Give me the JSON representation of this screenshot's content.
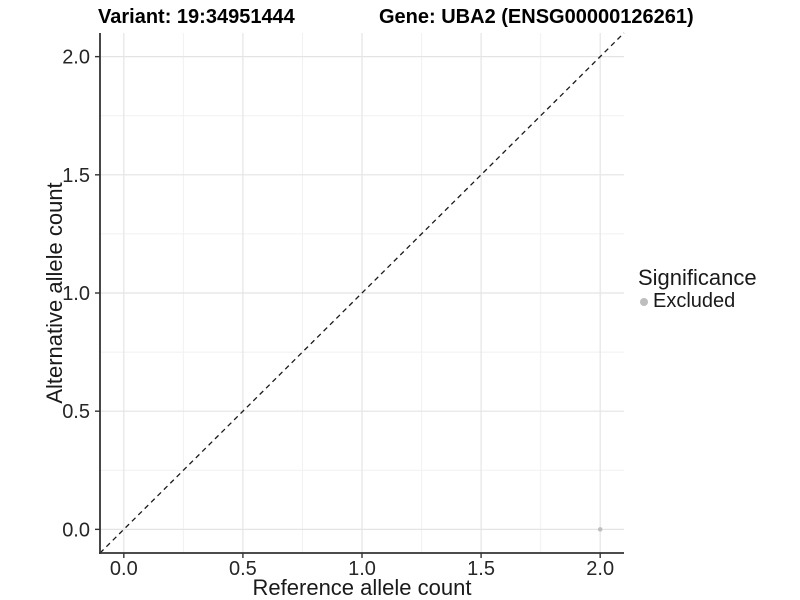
{
  "chart_data": {
    "type": "scatter",
    "title_left": "Variant: 19:34951444",
    "title_right": "Gene: UBA2 (ENSG00000126261)",
    "xlabel": "Reference allele count",
    "ylabel": "Alternative allele count",
    "xlim": [
      -0.1,
      2.1
    ],
    "ylim": [
      -0.1,
      2.1
    ],
    "x_ticks": [
      0,
      0.5,
      1,
      1.5,
      2
    ],
    "x_tick_labels": [
      "0.0",
      "0.5",
      "1.0",
      "1.5",
      "2.0"
    ],
    "y_ticks": [
      0,
      0.5,
      1,
      1.5,
      2
    ],
    "y_tick_labels": [
      "0.0",
      "0.5",
      "1.0",
      "1.5",
      "2.0"
    ],
    "minor_ticks": [
      0.25,
      0.75,
      1.25,
      1.75
    ],
    "grid": "major+minor",
    "identity_line": {
      "style": "dashed",
      "from": [
        -0.1,
        -0.1
      ],
      "to": [
        2.1,
        2.1
      ],
      "color": "#1a1a1a"
    },
    "series": [
      {
        "name": "Excluded",
        "color": "#bebebe",
        "points": [
          {
            "x": 2.0,
            "y": 0.0
          }
        ]
      }
    ],
    "legend": {
      "title": "Significance",
      "position": "right",
      "items": [
        {
          "label": "Excluded",
          "color": "#bebebe",
          "marker": "circle-icon"
        }
      ]
    }
  },
  "colors": {
    "background": "#ffffff",
    "grid_major": "#e4e4e4",
    "grid_minor": "#f1f1f1",
    "axis": "#333333",
    "tick_text": "#262626"
  }
}
